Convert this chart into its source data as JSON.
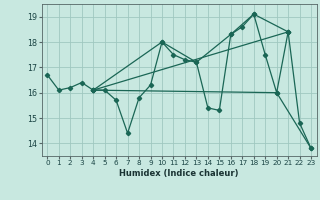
{
  "xlabel": "Humidex (Indice chaleur)",
  "xlim": [
    -0.5,
    23.5
  ],
  "ylim": [
    13.5,
    19.5
  ],
  "yticks": [
    14,
    15,
    16,
    17,
    18,
    19
  ],
  "xticks": [
    0,
    1,
    2,
    3,
    4,
    5,
    6,
    7,
    8,
    9,
    10,
    11,
    12,
    13,
    14,
    15,
    16,
    17,
    18,
    19,
    20,
    21,
    22,
    23
  ],
  "bg_color": "#c8e8e0",
  "grid_color": "#a0c8c0",
  "line_color": "#1a6655",
  "main_series": [
    [
      0,
      16.7
    ],
    [
      1,
      16.1
    ],
    [
      2,
      16.2
    ],
    [
      3,
      16.4
    ],
    [
      4,
      16.1
    ],
    [
      5,
      16.1
    ],
    [
      6,
      15.7
    ],
    [
      7,
      14.4
    ],
    [
      8,
      15.8
    ],
    [
      9,
      16.3
    ],
    [
      10,
      18.0
    ],
    [
      11,
      17.5
    ],
    [
      12,
      17.3
    ],
    [
      13,
      17.2
    ],
    [
      14,
      15.4
    ],
    [
      15,
      15.3
    ],
    [
      16,
      18.3
    ],
    [
      17,
      18.6
    ],
    [
      18,
      19.1
    ],
    [
      19,
      17.5
    ],
    [
      20,
      16.0
    ],
    [
      21,
      18.4
    ],
    [
      22,
      14.8
    ],
    [
      23,
      13.8
    ]
  ],
  "extra_lines": [
    [
      [
        4,
        16.1
      ],
      [
        10,
        18.0
      ],
      [
        13,
        17.2
      ],
      [
        16,
        18.3
      ],
      [
        18,
        19.1
      ],
      [
        21,
        18.4
      ]
    ],
    [
      [
        4,
        16.1
      ],
      [
        21,
        18.4
      ]
    ],
    [
      [
        4,
        16.1
      ],
      [
        20,
        16.0
      ],
      [
        23,
        13.8
      ]
    ]
  ]
}
